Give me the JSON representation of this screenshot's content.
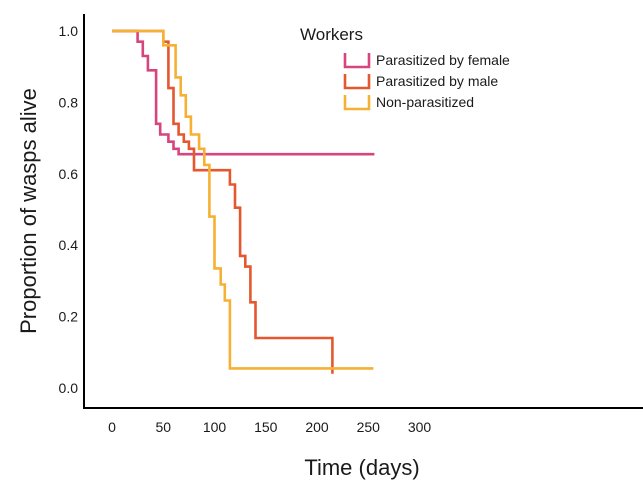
{
  "chart_data": {
    "type": "line",
    "step": true,
    "xlabel": "Time (days)",
    "ylabel": "Proportion of wasps alive",
    "xlim": [
      -20,
      300
    ],
    "ylim": [
      -0.05,
      1.05
    ],
    "x_ticks": [
      "0",
      "50",
      "100",
      "150",
      "200",
      "250",
      "300"
    ],
    "y_ticks": [
      "0.0",
      "0.2",
      "0.4",
      "0.6",
      "0.8",
      "1.0"
    ],
    "legend": {
      "title": "Workers",
      "position": "top-right"
    },
    "grid": false,
    "series": [
      {
        "name": "Parasitized by female",
        "color": "#d6457d",
        "x": [
          0,
          20,
          25,
          30,
          35,
          43,
          47,
          55,
          60,
          65,
          256
        ],
        "y": [
          1.0,
          1.0,
          0.97,
          0.93,
          0.89,
          0.74,
          0.71,
          0.69,
          0.67,
          0.655,
          0.655
        ]
      },
      {
        "name": "Parasitized by male",
        "color": "#e5572e",
        "x": [
          0,
          40,
          50,
          55,
          60,
          65,
          70,
          75,
          80,
          110,
          115,
          120,
          125,
          130,
          135,
          140,
          185,
          215
        ],
        "y": [
          1.0,
          1.0,
          0.97,
          0.84,
          0.74,
          0.71,
          0.69,
          0.67,
          0.61,
          0.61,
          0.57,
          0.505,
          0.37,
          0.34,
          0.24,
          0.14,
          0.14,
          0.04
        ]
      },
      {
        "name": "Non-parasitized",
        "color": "#f5b133",
        "x": [
          0,
          15,
          50,
          55,
          62,
          67,
          72,
          77,
          85,
          90,
          95,
          100,
          106,
          110,
          115,
          120,
          255
        ],
        "y": [
          1.0,
          1.0,
          0.96,
          0.96,
          0.87,
          0.82,
          0.76,
          0.71,
          0.67,
          0.625,
          0.48,
          0.335,
          0.29,
          0.245,
          0.055,
          0.055,
          0.055
        ]
      }
    ]
  }
}
